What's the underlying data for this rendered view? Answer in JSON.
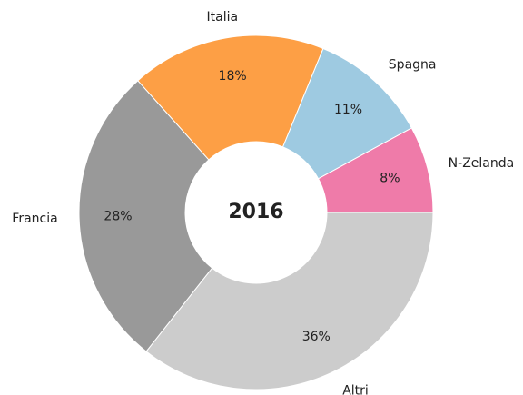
{
  "chart_data": {
    "type": "pie",
    "center_label": "2016",
    "categories": [
      "N-Zelanda",
      "Spagna",
      "Italia",
      "Francia",
      "Altri"
    ],
    "values": [
      8,
      11,
      18,
      28,
      36
    ],
    "value_labels": [
      "8%",
      "11%",
      "18%",
      "28%",
      "36%"
    ],
    "colors": [
      "#ef7ba9",
      "#9ecae1",
      "#fd9f45",
      "#999999",
      "#cccccc"
    ],
    "donut": true
  }
}
